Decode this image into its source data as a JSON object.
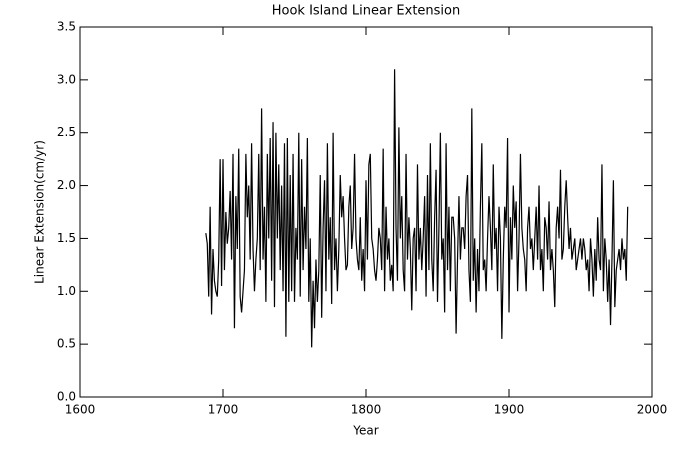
{
  "chart_data": {
    "type": "line",
    "title": "Hook Island Linear Extension",
    "xlabel": "Year",
    "ylabel": "Linear Extension(cm/yr)",
    "xlim": [
      1600,
      2000
    ],
    "xticks": [
      1600,
      1700,
      1800,
      1900,
      2000
    ],
    "ylim": [
      0,
      3.5
    ],
    "yticks": [
      {
        "value": 0,
        "label": "0.0"
      },
      0.5,
      {
        "value": 1,
        "label": "1.0"
      },
      1.5,
      {
        "value": 2,
        "label": "2.0"
      },
      2.5,
      {
        "value": 3,
        "label": "3.0"
      },
      3.5
    ],
    "series": [
      {
        "name": "Linear Extension",
        "color": "#000000",
        "x": [
          1688,
          1689,
          1690,
          1691,
          1692,
          1693,
          1694,
          1695,
          1696,
          1697,
          1698,
          1699,
          1700,
          1701,
          1702,
          1703,
          1704,
          1705,
          1706,
          1707,
          1708,
          1709,
          1710,
          1711,
          1712,
          1713,
          1714,
          1715,
          1716,
          1717,
          1718,
          1719,
          1720,
          1721,
          1722,
          1723,
          1724,
          1725,
          1726,
          1727,
          1728,
          1729,
          1730,
          1731,
          1732,
          1733,
          1734,
          1735,
          1736,
          1737,
          1738,
          1739,
          1740,
          1741,
          1742,
          1743,
          1744,
          1745,
          1746,
          1747,
          1748,
          1749,
          1750,
          1751,
          1752,
          1753,
          1754,
          1755,
          1756,
          1757,
          1758,
          1759,
          1760,
          1761,
          1762,
          1763,
          1764,
          1765,
          1766,
          1767,
          1768,
          1769,
          1770,
          1771,
          1772,
          1773,
          1774,
          1775,
          1776,
          1777,
          1778,
          1779,
          1780,
          1781,
          1782,
          1783,
          1784,
          1785,
          1786,
          1787,
          1788,
          1789,
          1790,
          1791,
          1792,
          1793,
          1794,
          1795,
          1796,
          1797,
          1798,
          1799,
          1800,
          1801,
          1802,
          1803,
          1804,
          1805,
          1806,
          1807,
          1808,
          1809,
          1810,
          1811,
          1812,
          1813,
          1814,
          1815,
          1816,
          1817,
          1818,
          1819,
          1820,
          1821,
          1822,
          1823,
          1824,
          1825,
          1826,
          1827,
          1828,
          1829,
          1830,
          1831,
          1832,
          1833,
          1834,
          1835,
          1836,
          1837,
          1838,
          1839,
          1840,
          1841,
          1842,
          1843,
          1844,
          1845,
          1846,
          1847,
          1848,
          1849,
          1850,
          1851,
          1852,
          1853,
          1854,
          1855,
          1856,
          1857,
          1858,
          1859,
          1860,
          1861,
          1862,
          1863,
          1864,
          1865,
          1866,
          1867,
          1868,
          1869,
          1870,
          1871,
          1872,
          1873,
          1874,
          1875,
          1876,
          1877,
          1878,
          1879,
          1880,
          1881,
          1882,
          1883,
          1884,
          1885,
          1886,
          1887,
          1888,
          1889,
          1890,
          1891,
          1892,
          1893,
          1894,
          1895,
          1896,
          1897,
          1898,
          1899,
          1900,
          1901,
          1902,
          1903,
          1904,
          1905,
          1906,
          1907,
          1908,
          1909,
          1910,
          1911,
          1912,
          1913,
          1914,
          1915,
          1916,
          1917,
          1918,
          1919,
          1920,
          1921,
          1922,
          1923,
          1924,
          1925,
          1926,
          1927,
          1928,
          1929,
          1930,
          1931,
          1932,
          1933,
          1934,
          1935,
          1936,
          1937,
          1938,
          1939,
          1940,
          1941,
          1942,
          1943,
          1944,
          1945,
          1946,
          1947,
          1948,
          1949,
          1950,
          1951,
          1952,
          1953,
          1954,
          1955,
          1956,
          1957,
          1958,
          1959,
          1960,
          1961,
          1962,
          1963,
          1964,
          1965,
          1966,
          1967,
          1968,
          1969,
          1970,
          1971,
          1972,
          1973,
          1974,
          1975,
          1976,
          1977,
          1978,
          1979,
          1980,
          1981,
          1982,
          1983
        ],
        "values": [
          1.55,
          1.45,
          0.95,
          1.8,
          0.78,
          1.4,
          1.1,
          1.0,
          0.95,
          1.3,
          2.25,
          1.05,
          2.25,
          1.2,
          1.75,
          1.45,
          1.6,
          1.95,
          1.3,
          2.3,
          0.65,
          1.9,
          1.4,
          2.35,
          0.95,
          0.8,
          1.0,
          1.2,
          2.3,
          1.7,
          2.0,
          1.3,
          2.4,
          1.4,
          1.0,
          1.3,
          1.5,
          2.3,
          1.2,
          2.73,
          1.3,
          1.8,
          0.9,
          2.3,
          1.5,
          2.45,
          1.1,
          2.6,
          0.85,
          2.5,
          1.5,
          2.2,
          1.2,
          2.0,
          1.0,
          2.4,
          0.57,
          2.45,
          0.9,
          2.1,
          1.0,
          2.3,
          0.9,
          1.6,
          1.3,
          2.5,
          0.95,
          2.25,
          1.2,
          1.8,
          1.4,
          2.45,
          0.9,
          1.5,
          0.47,
          1.1,
          0.65,
          1.3,
          0.9,
          1.2,
          2.1,
          0.75,
          1.6,
          2.05,
          1.0,
          2.4,
          1.3,
          1.7,
          0.88,
          2.5,
          1.2,
          1.5,
          1.0,
          1.4,
          2.1,
          1.7,
          1.9,
          1.5,
          1.2,
          1.25,
          1.8,
          2.0,
          1.4,
          1.6,
          2.3,
          1.5,
          1.3,
          1.2,
          1.7,
          1.1,
          1.4,
          1.0,
          2.05,
          1.3,
          2.2,
          2.3,
          1.5,
          1.4,
          1.2,
          1.1,
          1.3,
          1.6,
          1.5,
          1.2,
          2.35,
          1.0,
          1.8,
          1.3,
          1.5,
          1.1,
          1.25,
          1.0,
          3.1,
          1.6,
          1.1,
          2.55,
          1.5,
          1.9,
          1.2,
          1.0,
          2.3,
          1.3,
          1.7,
          1.4,
          0.82,
          1.5,
          1.6,
          1.0,
          2.2,
          1.3,
          1.6,
          1.2,
          1.5,
          1.9,
          0.95,
          2.1,
          1.2,
          2.4,
          1.3,
          1.0,
          1.7,
          2.15,
          0.9,
          1.6,
          2.5,
          1.3,
          1.5,
          0.8,
          2.4,
          1.2,
          1.8,
          1.0,
          1.7,
          1.7,
          1.5,
          0.6,
          1.3,
          1.9,
          1.3,
          1.6,
          1.6,
          1.4,
          1.9,
          2.1,
          1.2,
          0.9,
          2.73,
          1.1,
          1.5,
          0.8,
          1.4,
          1.0,
          1.8,
          2.4,
          1.2,
          1.3,
          1.0,
          1.5,
          1.9,
          1.6,
          1.2,
          2.2,
          1.4,
          1.6,
          1.0,
          1.8,
          1.5,
          0.55,
          1.3,
          1.8,
          1.6,
          2.45,
          0.8,
          1.7,
          1.3,
          2.0,
          1.6,
          1.85,
          1.0,
          1.5,
          2.3,
          1.6,
          1.4,
          1.3,
          1.0,
          1.6,
          1.8,
          1.4,
          1.5,
          1.2,
          1.5,
          1.8,
          1.3,
          2.0,
          1.2,
          1.4,
          1.0,
          1.7,
          1.6,
          1.3,
          1.85,
          1.2,
          1.4,
          1.2,
          0.85,
          1.6,
          1.8,
          1.5,
          2.15,
          1.3,
          1.4,
          1.8,
          2.05,
          1.7,
          1.4,
          1.6,
          1.3,
          1.4,
          1.5,
          1.2,
          1.3,
          1.4,
          1.5,
          1.3,
          1.5,
          1.4,
          1.2,
          1.3,
          1.0,
          1.5,
          1.3,
          0.95,
          1.4,
          1.1,
          1.7,
          1.3,
          1.2,
          2.2,
          1.0,
          1.5,
          1.3,
          0.9,
          1.3,
          0.68,
          1.3,
          2.05,
          0.85,
          1.2,
          1.3,
          1.4,
          1.2,
          1.5,
          1.3,
          1.4,
          1.1,
          1.8
        ]
      }
    ]
  }
}
